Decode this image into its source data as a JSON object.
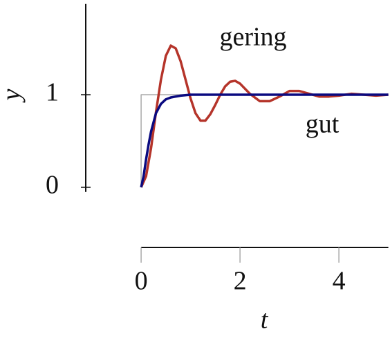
{
  "chart_data": {
    "type": "line",
    "xlabel": "t",
    "ylabel": "y",
    "annotations": [
      {
        "text": "gering",
        "color": "#b5342a"
      },
      {
        "text": "gut",
        "color": "#0a0a80"
      }
    ],
    "xlim": [
      -1.12,
      5
    ],
    "ylim": [
      -0.05,
      1.98
    ],
    "xticks": [
      0,
      2,
      4
    ],
    "yticks": [
      0,
      1
    ],
    "series": [
      {
        "color": "#aaaaaa",
        "x": [
          0,
          0,
          5
        ],
        "values": [
          0,
          1,
          1
        ]
      },
      {
        "name": "gering",
        "color": "#b5342a",
        "x": [
          0,
          0.1,
          0.2,
          0.3,
          0.4,
          0.5,
          0.6,
          0.7,
          0.8,
          0.9,
          1.0,
          1.1,
          1.2,
          1.3,
          1.4,
          1.5,
          1.6,
          1.7,
          1.8,
          1.9,
          2.0,
          2.2,
          2.4,
          2.6,
          2.8,
          3.0,
          3.2,
          3.4,
          3.6,
          3.8,
          4.0,
          4.25,
          4.5,
          4.75,
          5.0
        ],
        "values": [
          0,
          0.12,
          0.42,
          0.81,
          1.16,
          1.42,
          1.53,
          1.5,
          1.36,
          1.16,
          0.96,
          0.8,
          0.72,
          0.72,
          0.79,
          0.89,
          1.0,
          1.09,
          1.14,
          1.15,
          1.12,
          1.01,
          0.93,
          0.93,
          0.98,
          1.04,
          1.04,
          1.01,
          0.98,
          0.98,
          0.99,
          1.01,
          1.0,
          0.99,
          1.0
        ]
      },
      {
        "name": "gut",
        "color": "#0a0a80",
        "x": [
          0,
          0.05,
          0.1,
          0.15,
          0.2,
          0.3,
          0.4,
          0.5,
          0.6,
          0.8,
          1.0,
          2.0,
          3.0,
          4.0,
          5.0
        ],
        "values": [
          0,
          0.12,
          0.3,
          0.46,
          0.6,
          0.8,
          0.9,
          0.95,
          0.97,
          0.99,
          1.0,
          1.0,
          1.0,
          1.0,
          1.0
        ]
      }
    ]
  }
}
